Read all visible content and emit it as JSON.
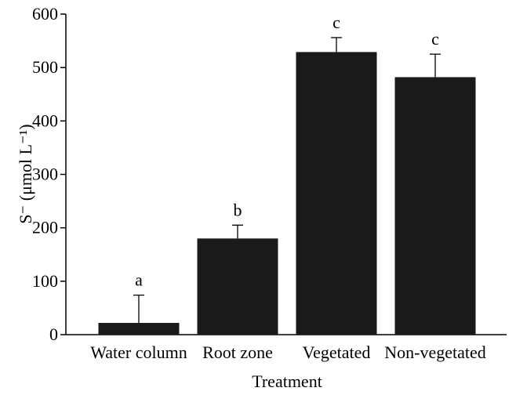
{
  "chart_data": {
    "type": "bar",
    "ylabel": "S⁻ (μmol L⁻¹)",
    "xlabel": "Treatment",
    "categories": [
      "Water column",
      "Root zone",
      "Vegetated",
      "Non-vegetated"
    ],
    "values": [
      22,
      180,
      529,
      482
    ],
    "errors": [
      52,
      25,
      27,
      43
    ],
    "annotations": [
      "a",
      "b",
      "c",
      "c"
    ],
    "color": "#1a1a1a",
    "ylim": [
      0,
      600
    ],
    "yticks": [
      0,
      100,
      200,
      300,
      400,
      500,
      600
    ]
  }
}
